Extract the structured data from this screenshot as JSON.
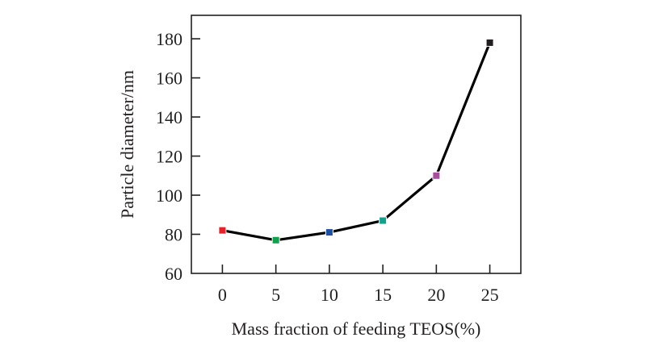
{
  "chart_data": {
    "type": "line",
    "title": "",
    "xlabel": "Mass fraction of feeding TEOS(%)",
    "ylabel": "Particle diameter/nm",
    "x": [
      0,
      5,
      10,
      15,
      20,
      25
    ],
    "series": [
      {
        "name": "Particle diameter",
        "values": [
          82,
          77,
          81,
          87,
          110,
          178
        ],
        "line_color": "#000000",
        "marker": "square",
        "marker_colors": [
          "#e8202a",
          "#0fa14b",
          "#1f4fa3",
          "#13a08f",
          "#a94c9f",
          "#231f20"
        ]
      }
    ],
    "xticks": [
      "0",
      "5",
      "10",
      "15",
      "20",
      "25"
    ],
    "yticks": [
      "60",
      "80",
      "100",
      "120",
      "140",
      "160",
      "180"
    ],
    "xlim": [
      -2.9,
      27.9
    ],
    "ylim": [
      60,
      192
    ],
    "grid": false,
    "legend": "none"
  }
}
